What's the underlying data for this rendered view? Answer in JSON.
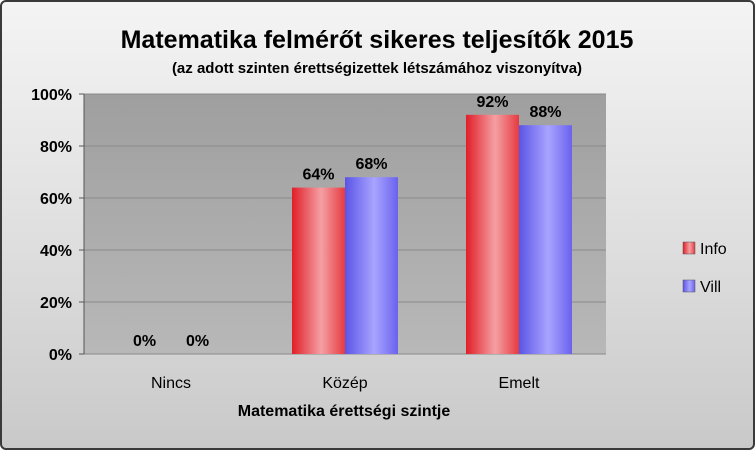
{
  "chart_data": {
    "type": "bar",
    "title": "Matematika felmérőt sikeres teljesítők 2015",
    "subtitle": "(az adott szinten érettségizettek létszámához viszonyítva)",
    "xlabel": "Matematika érettségi szintje",
    "ylabel": "",
    "categories": [
      "Nincs",
      "Közép",
      "Emelt"
    ],
    "series": [
      {
        "name": "Info",
        "values": [
          0,
          64,
          92
        ],
        "labels": [
          "0%",
          "64%",
          "92%"
        ],
        "color": "#e8323a"
      },
      {
        "name": "Vill",
        "values": [
          0,
          68,
          88
        ],
        "labels": [
          "0%",
          "68%",
          "88%"
        ],
        "color": "#6a5ef0"
      }
    ],
    "ylim": [
      0,
      100
    ],
    "yticks": [
      "0%",
      "20%",
      "40%",
      "60%",
      "80%",
      "100%"
    ],
    "grid": true,
    "legend_position": "right"
  }
}
